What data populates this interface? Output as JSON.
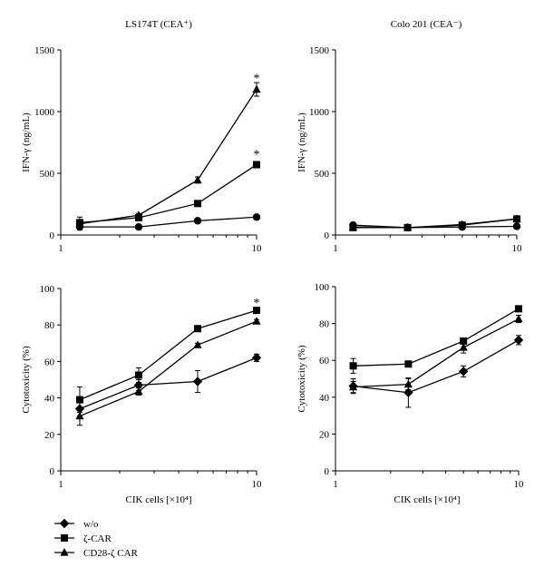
{
  "legend": {
    "items": [
      {
        "label": "w/o",
        "marker": "diamond"
      },
      {
        "label": "ζ-CAR",
        "marker": "square"
      },
      {
        "label": "CD28-ζ CAR",
        "marker": "triangle"
      }
    ]
  },
  "chart_data": [
    {
      "type": "line",
      "title": "LS174T (CEA⁺)",
      "xlabel": "",
      "ylabel": "IFN-γ (ng/mL)",
      "xscale": "log",
      "xlim": [
        1,
        10
      ],
      "ylim": [
        0,
        1500
      ],
      "xticks": [
        1,
        10
      ],
      "yticks": [
        0,
        500,
        1000,
        1500
      ],
      "x": [
        1.25,
        2.5,
        5,
        10
      ],
      "series": [
        {
          "marker": "circle",
          "values": [
            65,
            65,
            115,
            145
          ],
          "err": [
            25,
            10,
            10,
            10
          ]
        },
        {
          "marker": "square",
          "values": [
            100,
            140,
            255,
            570
          ],
          "err": [
            45,
            10,
            15,
            20
          ]
        },
        {
          "marker": "triangle",
          "values": [
            90,
            160,
            445,
            1180
          ],
          "err": [
            20,
            15,
            25,
            55
          ]
        }
      ],
      "annotations": [
        {
          "text": "*",
          "x": 10,
          "y": 1270
        },
        {
          "text": "*",
          "x": 10,
          "y": 650
        }
      ]
    },
    {
      "type": "line",
      "title": "Colo 201 (CEA⁻)",
      "xlabel": "",
      "ylabel": "IFN-γ (ng/mL)",
      "xscale": "log",
      "xlim": [
        1,
        10
      ],
      "ylim": [
        0,
        1500
      ],
      "xticks": [
        1,
        10
      ],
      "yticks": [
        0,
        500,
        1000,
        1500
      ],
      "x": [
        1.25,
        2.5,
        5,
        10
      ],
      "series": [
        {
          "marker": "circle",
          "values": [
            80,
            60,
            65,
            70
          ],
          "err": [
            10,
            8,
            8,
            8
          ]
        },
        {
          "marker": "square",
          "values": [
            60,
            60,
            80,
            130
          ],
          "err": [
            8,
            8,
            8,
            10
          ]
        },
        {
          "marker": "triangle",
          "values": [
            65,
            60,
            85,
            130
          ],
          "err": [
            8,
            8,
            10,
            10
          ]
        }
      ],
      "annotations": []
    },
    {
      "type": "line",
      "title": "",
      "xlabel": "CIK cells [×10⁴]",
      "ylabel": "Cytotoxicity (%)",
      "xscale": "log",
      "xlim": [
        1,
        10
      ],
      "ylim": [
        0,
        100
      ],
      "xticks": [
        1,
        10
      ],
      "yticks": [
        0,
        20,
        40,
        60,
        80,
        100
      ],
      "x": [
        1.25,
        2.5,
        5,
        10
      ],
      "series": [
        {
          "marker": "diamond",
          "values": [
            34,
            47,
            49,
            62
          ],
          "err": [
            4,
            3,
            6,
            2
          ]
        },
        {
          "marker": "square",
          "values": [
            39,
            52.5,
            78,
            88
          ],
          "err": [
            7,
            4,
            1,
            1
          ]
        },
        {
          "marker": "triangle",
          "values": [
            30,
            43.5,
            69,
            82
          ],
          "err": [
            5,
            2,
            1,
            1
          ]
        }
      ],
      "annotations": [
        {
          "text": "*",
          "x": 10,
          "y": 92
        }
      ]
    },
    {
      "type": "line",
      "title": "",
      "xlabel": "CIK cells [×10⁴]",
      "ylabel": "Cytotoxicity (%)",
      "xscale": "log",
      "xlim": [
        1,
        10
      ],
      "ylim": [
        0,
        100
      ],
      "xticks": [
        1,
        10
      ],
      "yticks": [
        0,
        20,
        40,
        60,
        80,
        100
      ],
      "x": [
        1.25,
        2.5,
        5,
        10
      ],
      "series": [
        {
          "marker": "diamond",
          "values": [
            46,
            42.5,
            54,
            71
          ],
          "err": [
            4,
            8,
            3,
            2.5
          ]
        },
        {
          "marker": "square",
          "values": [
            57,
            58,
            70.5,
            88
          ],
          "err": [
            4,
            1,
            1,
            1
          ]
        },
        {
          "marker": "triangle",
          "values": [
            45.5,
            47,
            67,
            82.5
          ],
          "err": [
            3,
            3,
            3,
            2
          ]
        }
      ],
      "annotations": []
    }
  ]
}
